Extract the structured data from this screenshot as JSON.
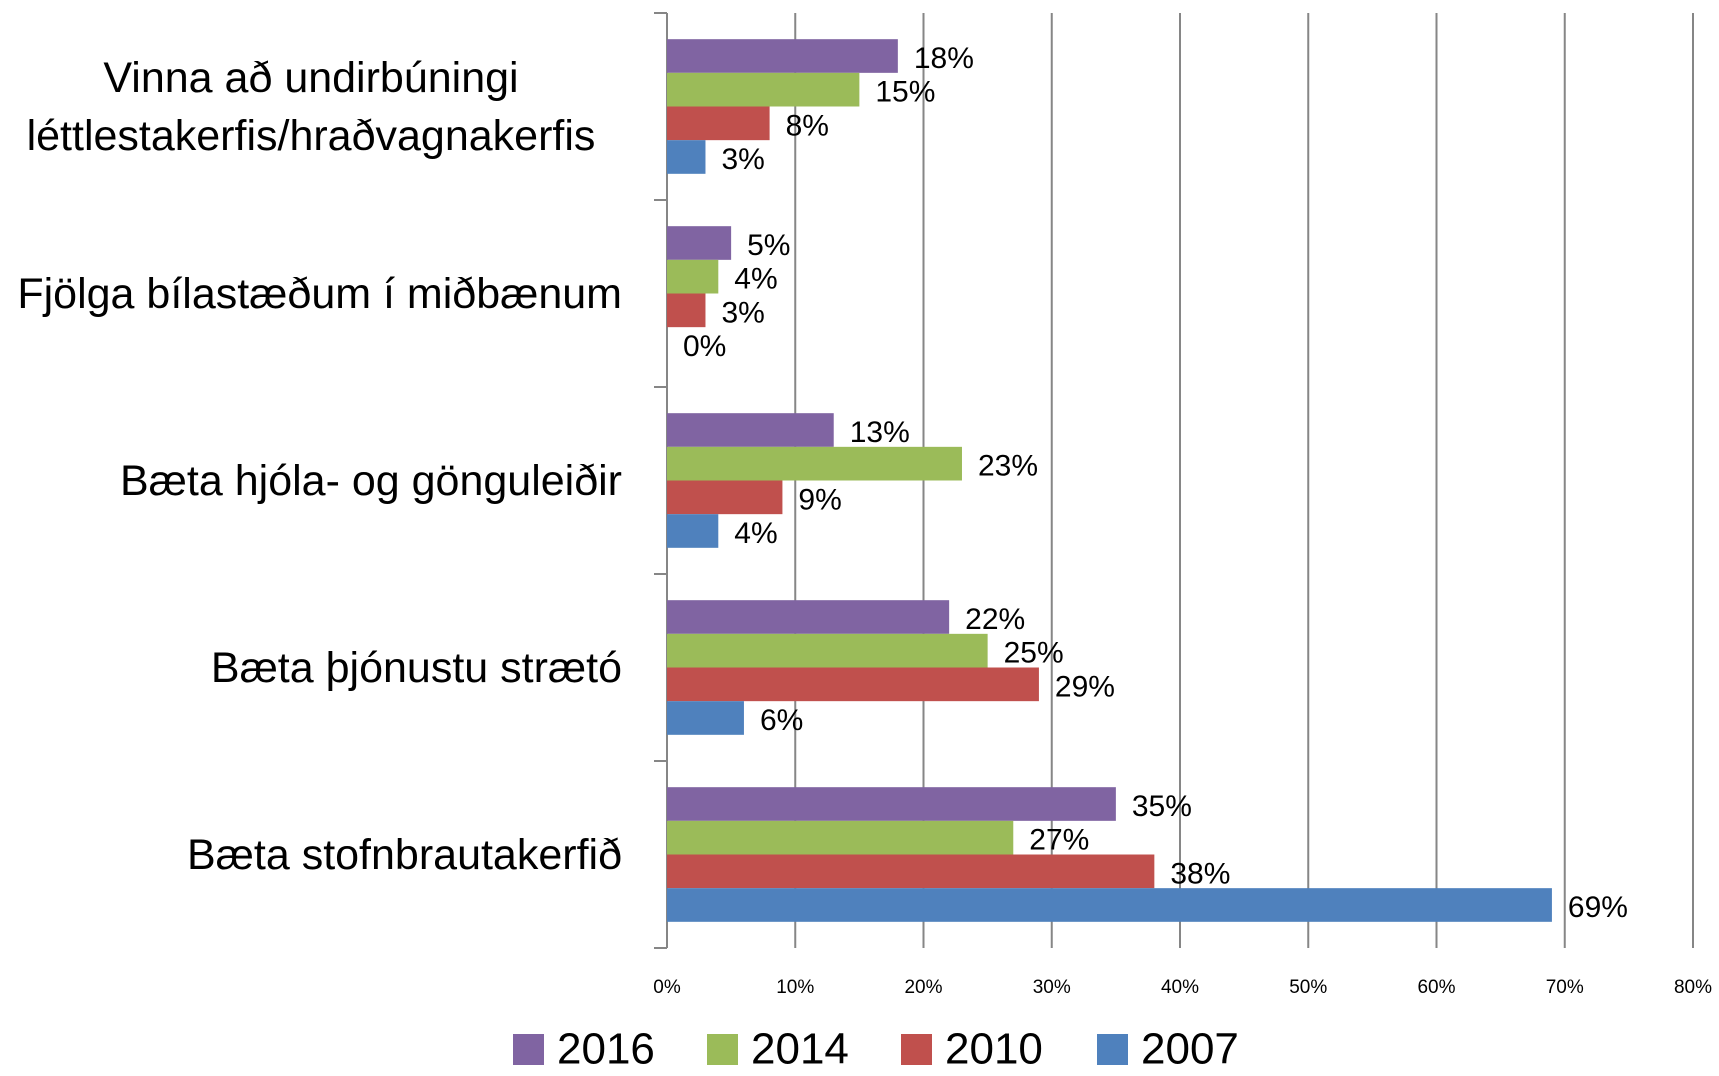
{
  "chart_data": {
    "type": "hbar",
    "categories": [
      "Vinna að undirbúningi léttlestakerfis/hraðvagnakerfis",
      "Fjölga bílastæðum í miðbænum",
      "Bæta hjóla- og gönguleiðir",
      "Bæta þjónustu strætó",
      "Bæta stofnbrautakerfið"
    ],
    "series": [
      {
        "name": "2016",
        "color": "#8064a2",
        "values": [
          18,
          5,
          13,
          22,
          35
        ],
        "value_labels": [
          "18%",
          "5%",
          "13%",
          "22%",
          "35%"
        ]
      },
      {
        "name": "2014",
        "color": "#9bbb59",
        "values": [
          15,
          4,
          23,
          25,
          27
        ],
        "value_labels": [
          "15%",
          "4%",
          "23%",
          "25%",
          "27%"
        ]
      },
      {
        "name": "2010",
        "color": "#c0504d",
        "values": [
          8,
          3,
          9,
          29,
          38
        ],
        "value_labels": [
          "8%",
          "3%",
          "9%",
          "29%",
          "38%"
        ]
      },
      {
        "name": "2007",
        "color": "#4f81bd",
        "values": [
          3,
          0,
          4,
          6,
          69
        ],
        "value_labels": [
          "3%",
          "0%",
          "4%",
          "6%",
          "69%"
        ]
      }
    ],
    "xlim": [
      0,
      80
    ],
    "xticks": [
      {
        "value": 0,
        "label": "0%"
      },
      {
        "value": 10,
        "label": "10%"
      },
      {
        "value": 20,
        "label": "20%"
      },
      {
        "value": 30,
        "label": "30%"
      },
      {
        "value": 40,
        "label": "40%"
      },
      {
        "value": 50,
        "label": "50%"
      },
      {
        "value": 60,
        "label": "60%"
      },
      {
        "value": 70,
        "label": "70%"
      },
      {
        "value": 80,
        "label": "80%"
      }
    ],
    "grid": true,
    "legend": "bottom"
  }
}
